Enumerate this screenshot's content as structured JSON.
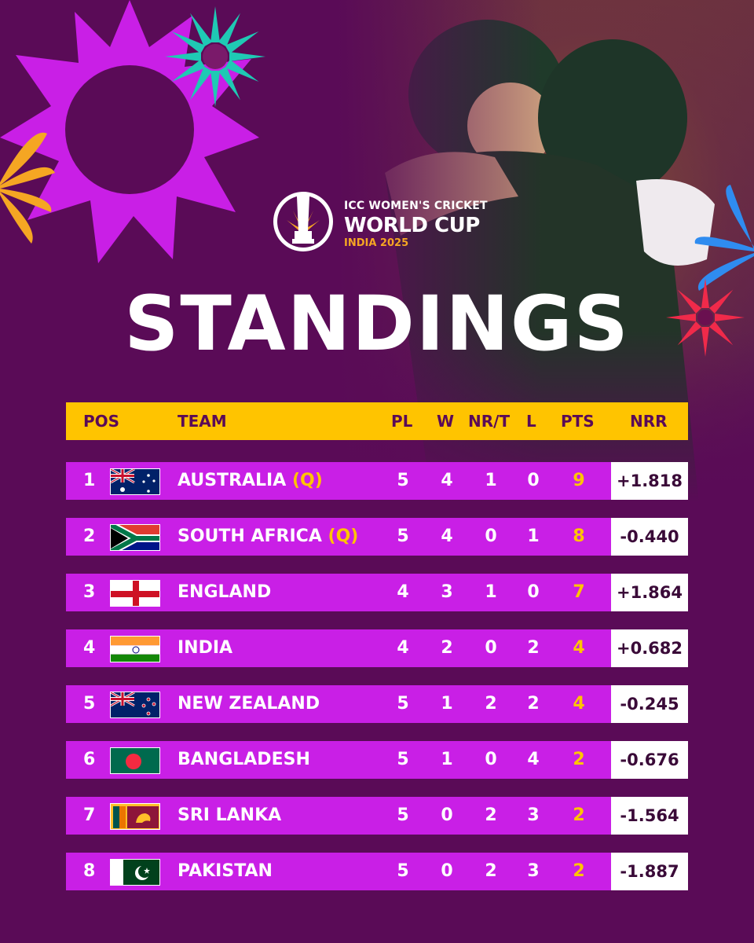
{
  "event": {
    "line1": "ICC WOMEN'S CRICKET",
    "line2": "WORLD CUP",
    "line3": "INDIA 2025"
  },
  "title": "STANDINGS",
  "columns": {
    "pos": "POS",
    "team": "TEAM",
    "pl": "PL",
    "w": "W",
    "nrt": "NR/T",
    "l": "L",
    "pts": "PTS",
    "nrr": "NRR"
  },
  "rows": [
    {
      "pos": "1",
      "team": "AUSTRALIA",
      "qualified": "(Q)",
      "flag": "australia-flag-icon",
      "pl": "5",
      "w": "4",
      "nrt": "1",
      "l": "0",
      "pts": "9",
      "nrr": "+1.818"
    },
    {
      "pos": "2",
      "team": "SOUTH AFRICA",
      "qualified": "(Q)",
      "flag": "south-africa-flag-icon",
      "pl": "5",
      "w": "4",
      "nrt": "0",
      "l": "1",
      "pts": "8",
      "nrr": "-0.440"
    },
    {
      "pos": "3",
      "team": "ENGLAND",
      "qualified": "",
      "flag": "england-flag-icon",
      "pl": "4",
      "w": "3",
      "nrt": "1",
      "l": "0",
      "pts": "7",
      "nrr": "+1.864"
    },
    {
      "pos": "4",
      "team": "INDIA",
      "qualified": "",
      "flag": "india-flag-icon",
      "pl": "4",
      "w": "2",
      "nrt": "0",
      "l": "2",
      "pts": "4",
      "nrr": "+0.682"
    },
    {
      "pos": "5",
      "team": "NEW ZEALAND",
      "qualified": "",
      "flag": "new-zealand-flag-icon",
      "pl": "5",
      "w": "1",
      "nrt": "2",
      "l": "2",
      "pts": "4",
      "nrr": "-0.245"
    },
    {
      "pos": "6",
      "team": "BANGLADESH",
      "qualified": "",
      "flag": "bangladesh-flag-icon",
      "pl": "5",
      "w": "1",
      "nrt": "0",
      "l": "4",
      "pts": "2",
      "nrr": "-0.676"
    },
    {
      "pos": "7",
      "team": "SRI LANKA",
      "qualified": "",
      "flag": "sri-lanka-flag-icon",
      "pl": "5",
      "w": "0",
      "nrt": "2",
      "l": "3",
      "pts": "2",
      "nrr": "-1.564"
    },
    {
      "pos": "8",
      "team": "PAKISTAN",
      "qualified": "",
      "flag": "pakistan-flag-icon",
      "pl": "5",
      "w": "0",
      "nrt": "2",
      "l": "3",
      "pts": "2",
      "nrr": "-1.887"
    }
  ],
  "colors": {
    "background": "#5a0b57",
    "header": "#ffc400",
    "row": "#c91fe6",
    "points": "#ffc400"
  }
}
